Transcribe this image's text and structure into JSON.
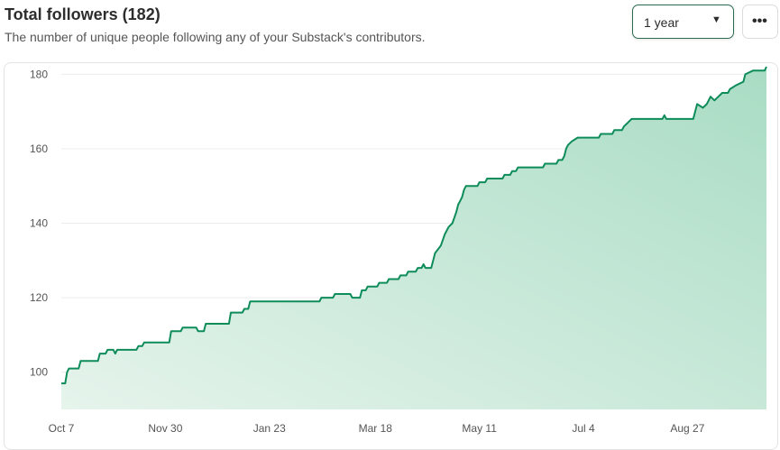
{
  "header": {
    "title": "Total followers (182)",
    "subtitle": "The number of unique people following any of your Substack's contributors."
  },
  "controls": {
    "range_label": "1 year",
    "range_caret": "▼",
    "more_label": "•••"
  },
  "colors": {
    "line": "#0e8c5a",
    "area_top": "#a9dcc4",
    "area_bottom": "#e6f4ec",
    "grid": "#ececec"
  },
  "icons": {
    "range": "chevron-down-icon",
    "more": "more-horizontal-icon"
  },
  "chart_data": {
    "type": "area",
    "title": "",
    "xlabel": "",
    "ylabel": "",
    "ylim": [
      90,
      183
    ],
    "xlim": [
      "2023-10-07",
      "2024-10-07"
    ],
    "grid": "horizontal",
    "legend": "none",
    "y_ticks": [
      100,
      120,
      140,
      160,
      180
    ],
    "x_ticks": [
      {
        "label": "Oct 7",
        "date": "2023-10-07"
      },
      {
        "label": "Nov 30",
        "date": "2023-11-30"
      },
      {
        "label": "Jan 23",
        "date": "2024-01-23"
      },
      {
        "label": "Mar 18",
        "date": "2024-03-18"
      },
      {
        "label": "May 11",
        "date": "2024-05-11"
      },
      {
        "label": "Jul 4",
        "date": "2024-07-04"
      },
      {
        "label": "Aug 27",
        "date": "2024-08-27"
      }
    ],
    "series": [
      {
        "points": [
          [
            "2023-10-07",
            97
          ],
          [
            "2023-10-09",
            97
          ],
          [
            "2023-10-10",
            100
          ],
          [
            "2023-10-11",
            101
          ],
          [
            "2023-10-16",
            101
          ],
          [
            "2023-10-17",
            103
          ],
          [
            "2023-10-26",
            103
          ],
          [
            "2023-10-27",
            105
          ],
          [
            "2023-10-30",
            105
          ],
          [
            "2023-10-31",
            106
          ],
          [
            "2023-11-03",
            106
          ],
          [
            "2023-11-04",
            105
          ],
          [
            "2023-11-05",
            106
          ],
          [
            "2023-11-15",
            106
          ],
          [
            "2023-11-16",
            107
          ],
          [
            "2023-11-18",
            107
          ],
          [
            "2023-11-19",
            108
          ],
          [
            "2023-12-02",
            108
          ],
          [
            "2023-12-03",
            111
          ],
          [
            "2023-12-08",
            111
          ],
          [
            "2023-12-09",
            112
          ],
          [
            "2023-12-16",
            112
          ],
          [
            "2023-12-17",
            111
          ],
          [
            "2023-12-20",
            111
          ],
          [
            "2023-12-21",
            113
          ],
          [
            "2024-01-02",
            113
          ],
          [
            "2024-01-03",
            116
          ],
          [
            "2024-01-09",
            116
          ],
          [
            "2024-01-10",
            117
          ],
          [
            "2024-01-12",
            117
          ],
          [
            "2024-01-13",
            119
          ],
          [
            "2024-02-18",
            119
          ],
          [
            "2024-02-19",
            120
          ],
          [
            "2024-02-25",
            120
          ],
          [
            "2024-02-26",
            121
          ],
          [
            "2024-03-05",
            121
          ],
          [
            "2024-03-06",
            120
          ],
          [
            "2024-03-10",
            120
          ],
          [
            "2024-03-11",
            122
          ],
          [
            "2024-03-13",
            122
          ],
          [
            "2024-03-14",
            123
          ],
          [
            "2024-03-19",
            123
          ],
          [
            "2024-03-20",
            124
          ],
          [
            "2024-03-24",
            124
          ],
          [
            "2024-03-25",
            125
          ],
          [
            "2024-03-30",
            125
          ],
          [
            "2024-03-31",
            126
          ],
          [
            "2024-04-03",
            126
          ],
          [
            "2024-04-04",
            127
          ],
          [
            "2024-04-08",
            127
          ],
          [
            "2024-04-09",
            128
          ],
          [
            "2024-04-11",
            128
          ],
          [
            "2024-04-12",
            129
          ],
          [
            "2024-04-13",
            128
          ],
          [
            "2024-04-16",
            128
          ],
          [
            "2024-04-18",
            132
          ],
          [
            "2024-04-21",
            134
          ],
          [
            "2024-04-23",
            137
          ],
          [
            "2024-04-25",
            139
          ],
          [
            "2024-04-27",
            140
          ],
          [
            "2024-04-29",
            143
          ],
          [
            "2024-04-30",
            145
          ],
          [
            "2024-05-01",
            146
          ],
          [
            "2024-05-02",
            147
          ],
          [
            "2024-05-03",
            149
          ],
          [
            "2024-05-04",
            150
          ],
          [
            "2024-05-10",
            150
          ],
          [
            "2024-05-11",
            151
          ],
          [
            "2024-05-14",
            151
          ],
          [
            "2024-05-15",
            152
          ],
          [
            "2024-05-23",
            152
          ],
          [
            "2024-05-24",
            153
          ],
          [
            "2024-05-27",
            153
          ],
          [
            "2024-05-28",
            154
          ],
          [
            "2024-05-30",
            154
          ],
          [
            "2024-05-31",
            155
          ],
          [
            "2024-06-13",
            155
          ],
          [
            "2024-06-14",
            156
          ],
          [
            "2024-06-20",
            156
          ],
          [
            "2024-06-21",
            157
          ],
          [
            "2024-06-23",
            157
          ],
          [
            "2024-06-24",
            158
          ],
          [
            "2024-06-25",
            160
          ],
          [
            "2024-06-26",
            161
          ],
          [
            "2024-06-28",
            162
          ],
          [
            "2024-07-01",
            163
          ],
          [
            "2024-07-12",
            163
          ],
          [
            "2024-07-13",
            164
          ],
          [
            "2024-07-19",
            164
          ],
          [
            "2024-07-20",
            165
          ],
          [
            "2024-07-24",
            165
          ],
          [
            "2024-07-25",
            166
          ],
          [
            "2024-07-27",
            167
          ],
          [
            "2024-07-29",
            168
          ],
          [
            "2024-08-14",
            168
          ],
          [
            "2024-08-15",
            169
          ],
          [
            "2024-08-16",
            168
          ],
          [
            "2024-08-30",
            168
          ],
          [
            "2024-08-31",
            170
          ],
          [
            "2024-09-01",
            172
          ],
          [
            "2024-09-04",
            171
          ],
          [
            "2024-09-06",
            172
          ],
          [
            "2024-09-08",
            174
          ],
          [
            "2024-09-10",
            173
          ],
          [
            "2024-09-12",
            174
          ],
          [
            "2024-09-14",
            175
          ],
          [
            "2024-09-17",
            175
          ],
          [
            "2024-09-18",
            176
          ],
          [
            "2024-09-21",
            177
          ],
          [
            "2024-09-25",
            178
          ],
          [
            "2024-09-26",
            180
          ],
          [
            "2024-09-30",
            181
          ],
          [
            "2024-10-06",
            181
          ],
          [
            "2024-10-07",
            182
          ]
        ]
      }
    ]
  }
}
